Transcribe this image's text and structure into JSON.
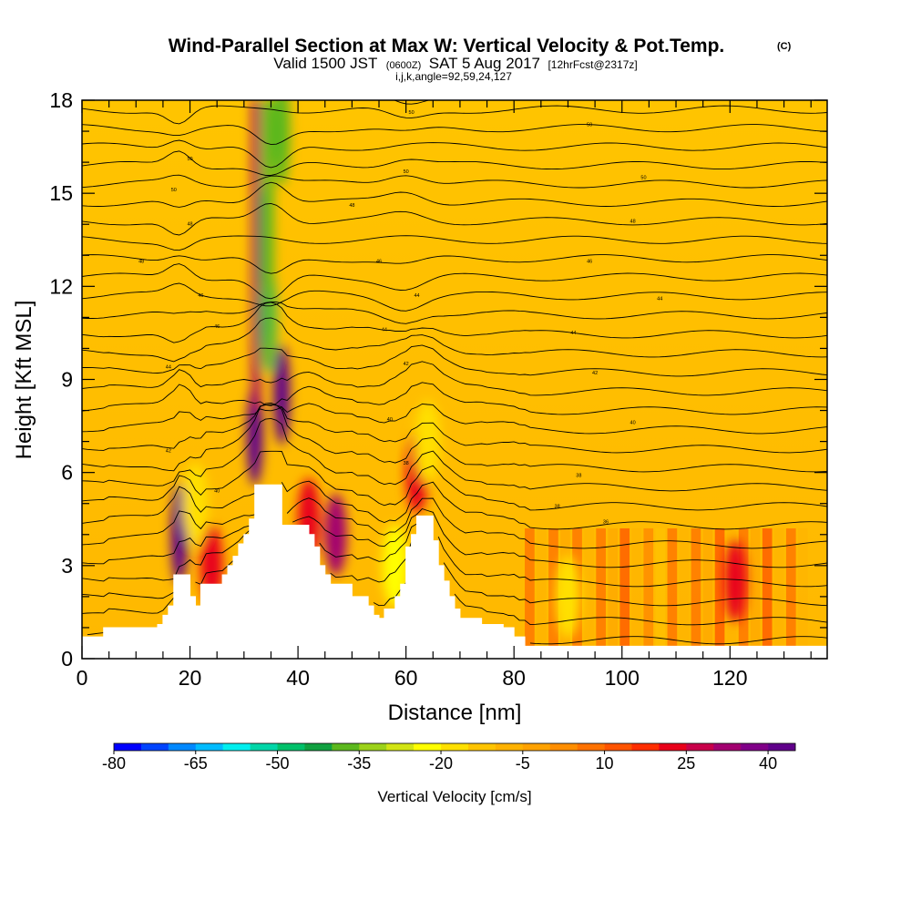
{
  "chart_data": {
    "type": "heatmap",
    "title": "Wind-Parallel Section at Max W: Vertical Velocity & Pot.Temp.",
    "title_mark": "(C)",
    "subtitle": {
      "valid": "Valid 1500 JST",
      "zulu": "(0600Z)",
      "date": "SAT 5 Aug 2017",
      "fcst": "[12hrFcst@2317z]"
    },
    "subtitle2": "i,j,k,angle=92,59,24,127",
    "xlabel": "Distance [nm]",
    "ylabel": "Height [Kft MSL]",
    "xlim": [
      0,
      138
    ],
    "ylim": [
      0,
      18
    ],
    "x_ticks": [
      0,
      20,
      40,
      60,
      80,
      100,
      120
    ],
    "y_ticks": [
      0,
      3,
      6,
      9,
      12,
      15,
      18
    ],
    "colorbar": {
      "title": "Vertical Velocity [cm/s]",
      "ticks": [
        "-80",
        "-65",
        "-50",
        "-35",
        "-20",
        "-5",
        "10",
        "25",
        "40"
      ],
      "colors": [
        "#0000ff",
        "#0044ff",
        "#0088ff",
        "#00bbff",
        "#00eeee",
        "#00d6a8",
        "#00c06a",
        "#10a040",
        "#5cb81e",
        "#9cd21a",
        "#d2e414",
        "#ffff00",
        "#ffe000",
        "#ffc400",
        "#ffb200",
        "#ffa200",
        "#ff8e00",
        "#ff7200",
        "#ff5400",
        "#ff2e00",
        "#e8001a",
        "#c8004a",
        "#a20070",
        "#800088",
        "#60008a"
      ]
    },
    "contour_labels": [
      "50",
      "48",
      "46",
      "44",
      "42",
      "40",
      "38",
      "36"
    ],
    "terrain_kft": [
      [
        0,
        0.7
      ],
      [
        1,
        0.7
      ],
      [
        4,
        1.0
      ],
      [
        10,
        1.0
      ],
      [
        14,
        1.1
      ],
      [
        15,
        1.4
      ],
      [
        16,
        1.7
      ],
      [
        17,
        2.7
      ],
      [
        19,
        2.7
      ],
      [
        20,
        2.0
      ],
      [
        21,
        1.7
      ],
      [
        22,
        2.4
      ],
      [
        25,
        2.4
      ],
      [
        26,
        2.7
      ],
      [
        27,
        3.0
      ],
      [
        28,
        3.3
      ],
      [
        29,
        3.7
      ],
      [
        30,
        4.0
      ],
      [
        31,
        4.5
      ],
      [
        32,
        5.6
      ],
      [
        36,
        5.6
      ],
      [
        37,
        4.3
      ],
      [
        41,
        4.3
      ],
      [
        42,
        4.0
      ],
      [
        43,
        3.6
      ],
      [
        44,
        3.0
      ],
      [
        45,
        2.7
      ],
      [
        46,
        2.4
      ],
      [
        49,
        2.4
      ],
      [
        50,
        2.0
      ],
      [
        52,
        2.0
      ],
      [
        53,
        1.7
      ],
      [
        54,
        1.4
      ],
      [
        55,
        1.3
      ],
      [
        56,
        1.6
      ],
      [
        58,
        2.0
      ],
      [
        59,
        2.4
      ],
      [
        60,
        3.6
      ],
      [
        61,
        4.0
      ],
      [
        62,
        4.6
      ],
      [
        64,
        4.6
      ],
      [
        65,
        3.8
      ],
      [
        66,
        3.0
      ],
      [
        67,
        2.5
      ],
      [
        68,
        2.0
      ],
      [
        69,
        1.6
      ],
      [
        70,
        1.3
      ],
      [
        74,
        1.1
      ],
      [
        78,
        1.0
      ],
      [
        80,
        0.7
      ],
      [
        82,
        0.4
      ],
      [
        138,
        0.4
      ]
    ],
    "updraft_cores": [
      {
        "x": 18,
        "y": 4.0,
        "w": 45
      },
      {
        "x": 32,
        "y": 7.2,
        "w": 40
      },
      {
        "x": 37,
        "y": 8.5,
        "w": 42
      },
      {
        "x": 47,
        "y": 4.0,
        "w": 30
      },
      {
        "x": 62,
        "y": 6.0,
        "w": 20
      },
      {
        "x": 24,
        "y": 3.0,
        "w": 22
      },
      {
        "x": 42,
        "y": 4.5,
        "w": 18
      },
      {
        "x": 121,
        "y": 2.5,
        "w": 18
      }
    ],
    "downdraft_cores": [
      {
        "x": 34.5,
        "y": 11.0,
        "w": -52
      },
      {
        "x": 34,
        "y": 13.5,
        "w": -40
      },
      {
        "x": 37,
        "y": 17.0,
        "w": -40
      },
      {
        "x": 21,
        "y": 5.0,
        "w": -22
      },
      {
        "x": 58,
        "y": 3.0,
        "w": -25
      },
      {
        "x": 64,
        "y": 7.0,
        "w": -18
      },
      {
        "x": 90,
        "y": 2.0,
        "w": -20
      }
    ]
  }
}
